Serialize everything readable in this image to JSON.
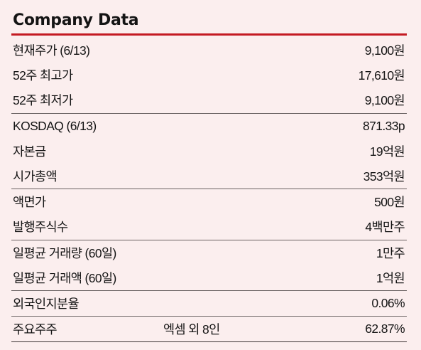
{
  "title": "Company Data",
  "groups": [
    [
      {
        "label": "현재주가 (6/13)",
        "value": "9,100원"
      },
      {
        "label": "52주 최고가",
        "value": "17,610원"
      },
      {
        "label": "52주 최저가",
        "value": "9,100원"
      }
    ],
    [
      {
        "label": "KOSDAQ (6/13)",
        "value": "871.33p"
      },
      {
        "label": "자본금",
        "value": "19억원"
      },
      {
        "label": "시가총액",
        "value": "353억원"
      }
    ],
    [
      {
        "label": "액면가",
        "value": "500원"
      },
      {
        "label": "발행주식수",
        "value": "4백만주"
      }
    ],
    [
      {
        "label": "일평균 거래량 (60일)",
        "value": "1만주"
      },
      {
        "label": "일평균 거래액 (60일)",
        "value": "1억원"
      }
    ],
    [
      {
        "label": "외국인지분율",
        "value": "0.06%"
      }
    ],
    [
      {
        "label": "주요주주",
        "holder": "엑셈 외 8인",
        "value": "62.87%"
      }
    ]
  ],
  "colors": {
    "background": "#fbeeee",
    "accent_rule": "#c41a22",
    "text": "#141414"
  }
}
